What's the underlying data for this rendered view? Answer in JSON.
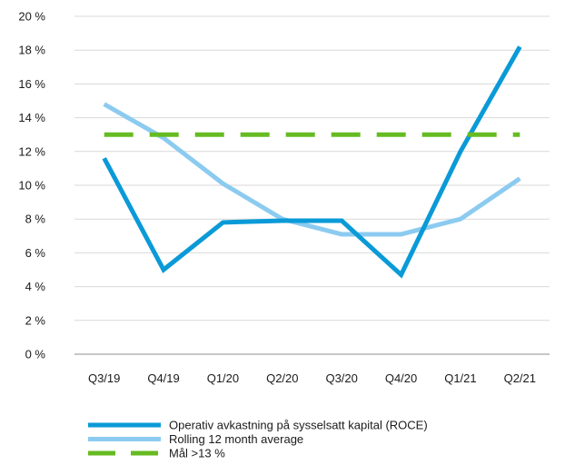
{
  "chart_data": {
    "type": "line",
    "categories": [
      "Q3/19",
      "Q4/19",
      "Q1/20",
      "Q2/20",
      "Q3/20",
      "Q4/20",
      "Q1/21",
      "Q2/21"
    ],
    "ylim": [
      0,
      20
    ],
    "y_ticks": [
      0,
      2,
      4,
      6,
      8,
      10,
      12,
      14,
      16,
      18,
      20
    ],
    "y_tick_labels": [
      "0 %",
      "2 %",
      "4 %",
      "6 %",
      "8 %",
      "10 %",
      "12 %",
      "14 %",
      "16 %",
      "18 %",
      "20 %"
    ],
    "grid": true,
    "legend_position": "bottom-left",
    "series": [
      {
        "name": "Operativ avkastning på sysselsatt kapital (ROCE)",
        "values": [
          11.6,
          5.0,
          7.8,
          7.9,
          7.9,
          4.7,
          12.0,
          18.2
        ],
        "color": "#0a9ad7",
        "style": "solid"
      },
      {
        "name": "Rolling 12 month average",
        "values": [
          14.8,
          12.8,
          10.1,
          8.0,
          7.1,
          7.1,
          8.0,
          10.4
        ],
        "color": "#8ccbf0",
        "style": "solid"
      },
      {
        "name": "Mål >13 %",
        "values": [
          13,
          13,
          13,
          13,
          13,
          13,
          13,
          13
        ],
        "color": "#66bb22",
        "style": "dashed"
      }
    ]
  }
}
